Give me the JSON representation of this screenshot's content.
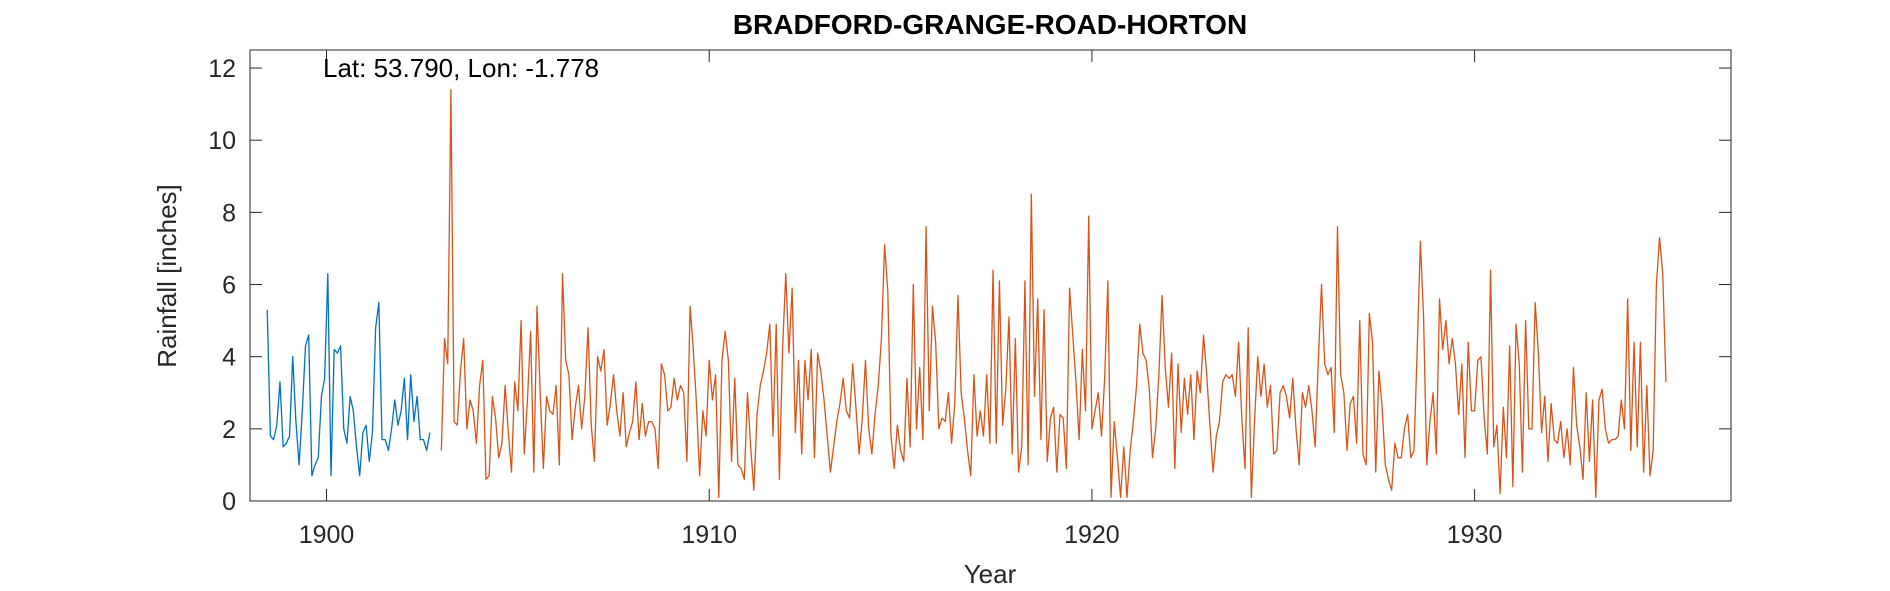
{
  "chart_data": {
    "type": "line",
    "title": "BRADFORD-GRANGE-ROAD-HORTON",
    "xlabel": "Year",
    "ylabel": "Rainfall [inches]",
    "annotation": "Lat: 53.790, Lon: -1.778",
    "xlim": [
      1898,
      1936.7
    ],
    "ylim": [
      0,
      12.5
    ],
    "xticks": [
      1900,
      1910,
      1920,
      1930
    ],
    "yticks": [
      0,
      2,
      4,
      6,
      8,
      10,
      12
    ],
    "grid": false,
    "legend": "none",
    "series": [
      {
        "color": "#0072BD",
        "x0": 1898.45,
        "step": 0.0833333,
        "values": [
          5.3,
          1.8,
          1.7,
          2.1,
          3.3,
          1.5,
          1.6,
          1.8,
          4.0,
          2.2,
          1.0,
          2.5,
          4.3,
          4.6,
          0.7,
          1.0,
          1.2,
          2.9,
          3.4,
          6.3,
          0.7,
          4.2,
          4.1,
          4.3,
          2.0,
          1.6,
          2.9,
          2.5,
          1.5,
          0.7,
          1.9,
          2.1,
          1.1,
          1.9,
          4.8,
          5.5,
          1.7,
          1.7,
          1.4,
          2.0,
          2.8,
          2.1,
          2.5,
          3.4,
          1.7,
          3.5,
          2.2,
          2.9,
          1.7,
          1.7,
          1.4,
          1.9
        ]
      },
      {
        "color": "#D95319",
        "x0": 1903.0,
        "step": 0.0833333,
        "values": [
          1.4,
          4.5,
          3.8,
          11.4,
          2.2,
          2.1,
          3.6,
          4.5,
          2.0,
          2.8,
          2.5,
          1.6,
          3.2,
          3.9,
          0.6,
          0.7,
          2.9,
          2.3,
          1.2,
          1.6,
          3.2,
          1.9,
          0.8,
          3.3,
          2.5,
          5.0,
          1.3,
          2.8,
          4.7,
          0.8,
          5.4,
          3.0,
          0.9,
          2.9,
          2.5,
          2.4,
          3.2,
          1.0,
          6.3,
          3.9,
          3.5,
          1.7,
          2.6,
          3.2,
          2.0,
          2.9,
          4.8,
          2.1,
          1.1,
          4.0,
          3.6,
          4.2,
          2.1,
          2.7,
          3.5,
          2.5,
          1.8,
          3.0,
          1.5,
          1.9,
          2.2,
          3.3,
          1.7,
          2.7,
          1.8,
          2.2,
          2.2,
          2.0,
          0.9,
          3.8,
          3.5,
          2.5,
          2.6,
          3.4,
          2.8,
          3.2,
          3.0,
          1.1,
          5.4,
          4.2,
          2.7,
          0.7,
          2.5,
          1.8,
          3.9,
          2.8,
          3.5,
          0.1,
          3.9,
          4.7,
          3.9,
          1.1,
          3.4,
          1.0,
          0.9,
          0.6,
          3.0,
          1.5,
          0.3,
          2.4,
          3.2,
          3.6,
          4.1,
          4.9,
          1.8,
          4.9,
          0.6,
          4.2,
          6.3,
          4.1,
          5.9,
          1.9,
          3.9,
          1.3,
          3.9,
          2.8,
          4.2,
          1.2,
          4.1,
          3.6,
          2.8,
          1.8,
          0.8,
          1.5,
          2.2,
          2.7,
          3.4,
          2.5,
          2.3,
          3.8,
          2.6,
          1.3,
          2.3,
          3.9,
          2.0,
          1.3,
          2.4,
          3.2,
          4.5,
          7.1,
          5.8,
          1.8,
          0.9,
          2.1,
          1.4,
          1.1,
          3.4,
          1.5,
          6.0,
          2.0,
          3.7,
          1.7,
          7.6,
          2.5,
          5.4,
          4.4,
          2.0,
          2.3,
          2.2,
          3.0,
          1.6,
          2.7,
          5.7,
          3.0,
          2.3,
          1.4,
          0.7,
          3.5,
          1.8,
          2.5,
          1.8,
          3.5,
          1.6,
          6.4,
          1.6,
          6.1,
          2.1,
          3.1,
          5.1,
          1.3,
          4.5,
          0.8,
          1.5,
          6.1,
          1.0,
          8.5,
          2.9,
          5.6,
          1.7,
          5.3,
          1.1,
          2.3,
          2.6,
          0.8,
          2.4,
          2.3,
          0.9,
          5.9,
          4.6,
          3.3,
          1.7,
          4.2,
          2.5,
          7.9,
          2.0,
          2.5,
          3.0,
          1.8,
          3.4,
          6.1,
          0.1,
          2.2,
          1.2,
          0.1,
          1.5,
          0.1,
          1.4,
          2.2,
          3.2,
          4.9,
          4.1,
          3.9,
          3.1,
          1.2,
          2.0,
          3.5,
          5.7,
          3.7,
          2.6,
          4.1,
          0.9,
          3.8,
          1.9,
          3.4,
          2.4,
          3.5,
          1.7,
          3.6,
          3.0,
          4.6,
          3.5,
          2.1,
          0.8,
          1.8,
          2.2,
          3.3,
          3.5,
          3.4,
          3.5,
          2.9,
          4.4,
          2.3,
          0.9,
          4.8,
          0.1,
          2.2,
          4.0,
          2.9,
          3.8,
          2.6,
          3.2,
          1.3,
          1.4,
          3.0,
          3.2,
          2.9,
          2.3,
          3.4,
          2.0,
          1.0,
          3.0,
          2.6,
          3.2,
          2.5,
          1.5,
          3.9,
          6.0,
          3.8,
          3.5,
          3.7,
          1.9,
          7.6,
          3.5,
          3.0,
          1.4,
          2.7,
          2.9,
          1.6,
          5.0,
          1.3,
          1.0,
          5.2,
          4.4,
          0.8,
          3.6,
          2.6,
          1.0,
          0.6,
          0.3,
          1.6,
          1.2,
          1.2,
          2.0,
          2.4,
          1.2,
          1.4,
          4.2,
          7.2,
          5.1,
          1.0,
          2.2,
          3.0,
          1.3,
          5.6,
          4.2,
          5.0,
          3.8,
          4.5,
          3.8,
          2.4,
          3.8,
          1.2,
          4.4,
          2.5,
          2.5,
          3.9,
          4.0,
          2.3,
          1.3,
          6.4,
          1.5,
          2.1,
          0.2,
          2.6,
          1.2,
          4.3,
          0.4,
          4.9,
          3.8,
          0.8,
          5.0,
          2.0,
          2.0,
          5.5,
          4.1,
          1.9,
          2.9,
          1.1,
          2.7,
          1.7,
          1.6,
          2.2,
          1.2,
          2.0,
          1.0,
          3.7,
          2.1,
          1.5,
          0.6,
          3.0,
          1.1,
          2.8,
          0.1,
          2.8,
          3.1,
          2.0,
          1.6,
          1.7,
          1.7,
          1.8,
          2.8,
          2.0,
          5.6,
          1.4,
          4.4,
          1.5,
          4.4,
          0.8,
          3.2,
          0.7,
          1.4,
          6.0,
          7.3,
          6.3,
          3.3
        ]
      }
    ]
  }
}
